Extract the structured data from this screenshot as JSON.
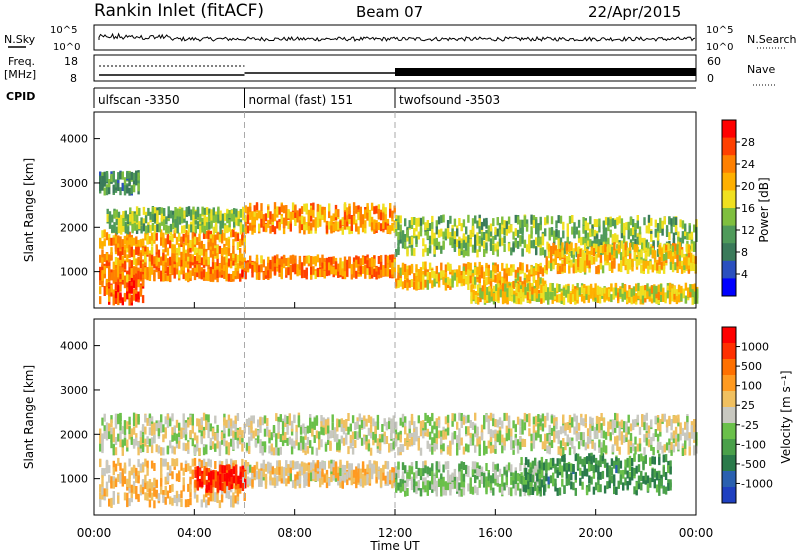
{
  "header": {
    "station": "Rankin Inlet (fitACF)",
    "beam": "Beam 07",
    "date": "22/Apr/2015"
  },
  "top_panels": {
    "nsky_label": "N.Sky",
    "nsky_ticks": [
      "10^5",
      "10^0"
    ],
    "nsearch_label": "N.Search",
    "nsearch_ticks": [
      "10^5",
      "10^0"
    ],
    "freq_label": "Freq.",
    "freq_unit": "[MHz]",
    "freq_ticks": [
      "18",
      "8"
    ],
    "nave_label": "Nave",
    "nave_ticks": [
      "60",
      "0"
    ],
    "cpid_label": "CPID",
    "cpid_segments": [
      {
        "name": "ulfscan -3350",
        "start_hour": 0.0,
        "end_hour": 6.0
      },
      {
        "name": "normal (fast) 151",
        "start_hour": 6.0,
        "end_hour": 12.0
      },
      {
        "name": "twofsound -3503",
        "start_hour": 12.0,
        "end_hour": 24.0
      }
    ]
  },
  "xaxis": {
    "title": "Time UT",
    "ticks": [
      "00:00",
      "04:00",
      "08:00",
      "12:00",
      "16:00",
      "20:00",
      "00:00"
    ]
  },
  "power_panel": {
    "ylabel": "Slant Range [km]",
    "yticks": [
      "4000",
      "3000",
      "2000",
      "1000"
    ],
    "colorbar_label": "Power [dB]",
    "colorbar_ticks": [
      "28",
      "24",
      "20",
      "16",
      "12",
      "8",
      "4"
    ],
    "colors": [
      "#0000ff",
      "#2a4fbf",
      "#3a7a5a",
      "#4f9a5a",
      "#7fbf3f",
      "#f0e020",
      "#ffb000",
      "#ff8000",
      "#ff4000",
      "#ff0000"
    ]
  },
  "velocity_panel": {
    "ylabel": "Slant Range [km]",
    "yticks": [
      "4000",
      "3000",
      "2000",
      "1000"
    ],
    "colorbar_label": "Velocity [m s⁻¹]",
    "colorbar_ticks": [
      "1000",
      "500",
      "100",
      "25",
      "-25",
      "-100",
      "-500",
      "-1000"
    ],
    "colors": [
      "#1f40c0",
      "#2a60b0",
      "#2a7a4a",
      "#4aa04a",
      "#6ac04a",
      "#c8c8c0",
      "#f0c060",
      "#ff9a20",
      "#ff7000",
      "#ff3000",
      "#ff0000"
    ]
  },
  "chart_data": [
    {
      "type": "heatmap",
      "title": "Power",
      "xlabel": "Time UT",
      "ylabel": "Slant Range [km]",
      "xlim_hours": [
        0,
        24
      ],
      "ylim_km": [
        180,
        4600
      ],
      "colorbar_label": "Power [dB]",
      "colorbar_range": [
        0,
        32
      ],
      "scatter_bands": [
        {
          "start_hour": 0.2,
          "end_hour": 2.0,
          "center_km": 600,
          "width_km": 350,
          "value_db": 26
        },
        {
          "start_hour": 0.2,
          "end_hour": 6.0,
          "center_km": 1050,
          "width_km": 250,
          "value_db": 24
        },
        {
          "start_hour": 0.2,
          "end_hour": 6.0,
          "center_km": 1550,
          "width_km": 400,
          "value_db": 22
        },
        {
          "start_hour": 0.5,
          "end_hour": 6.0,
          "center_km": 2150,
          "width_km": 300,
          "value_db": 14
        },
        {
          "start_hour": 0.2,
          "end_hour": 1.8,
          "center_km": 3000,
          "width_km": 250,
          "value_db": 10
        },
        {
          "start_hour": 6.0,
          "end_hour": 12.0,
          "center_km": 1100,
          "width_km": 250,
          "value_db": 24
        },
        {
          "start_hour": 6.0,
          "end_hour": 12.0,
          "center_km": 2200,
          "width_km": 350,
          "value_db": 22
        },
        {
          "start_hour": 12.0,
          "end_hour": 18.0,
          "center_km": 900,
          "width_km": 300,
          "value_db": 20
        },
        {
          "start_hour": 12.0,
          "end_hour": 24.0,
          "center_km": 1800,
          "width_km": 500,
          "value_db": 14
        },
        {
          "start_hour": 18.0,
          "end_hour": 24.0,
          "center_km": 1300,
          "width_km": 350,
          "value_db": 20
        },
        {
          "start_hour": 15.0,
          "end_hour": 24.0,
          "center_km": 500,
          "width_km": 200,
          "value_db": 18
        }
      ]
    },
    {
      "type": "heatmap",
      "title": "Velocity",
      "xlabel": "Time UT",
      "ylabel": "Slant Range [km]",
      "xlim_hours": [
        0,
        24
      ],
      "ylim_km": [
        180,
        4600
      ],
      "colorbar_label": "Velocity [m s⁻¹]",
      "colorbar_range": [
        -1000,
        1000
      ],
      "scatter_bands": [
        {
          "start_hour": 0.2,
          "end_hour": 6.0,
          "center_km": 900,
          "width_km": 600,
          "value_ms": 200
        },
        {
          "start_hour": 4.0,
          "end_hour": 6.0,
          "center_km": 1000,
          "width_km": 300,
          "value_ms": 800
        },
        {
          "start_hour": 0.2,
          "end_hour": 12.0,
          "center_km": 2000,
          "width_km": 500,
          "value_ms": 0
        },
        {
          "start_hour": 6.0,
          "end_hour": 12.0,
          "center_km": 1100,
          "width_km": 300,
          "value_ms": 150
        },
        {
          "start_hour": 12.0,
          "end_hour": 18.0,
          "center_km": 1000,
          "width_km": 400,
          "value_ms": -150
        },
        {
          "start_hour": 17.0,
          "end_hour": 23.0,
          "center_km": 1100,
          "width_km": 500,
          "value_ms": -400
        },
        {
          "start_hour": 12.0,
          "end_hour": 24.0,
          "center_km": 2000,
          "width_km": 500,
          "value_ms": 0
        }
      ]
    }
  ]
}
